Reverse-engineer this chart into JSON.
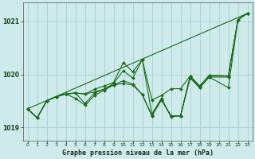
{
  "xlabel": "Graphe pression niveau de la mer (hPa)",
  "background_color": "#ceeaea",
  "grid_color": "#aad4d4",
  "line_color": "#1a6b1a",
  "x_ticks": [
    0,
    1,
    2,
    3,
    4,
    5,
    6,
    7,
    8,
    9,
    10,
    11,
    12,
    13,
    14,
    15,
    16,
    17,
    18,
    19,
    20,
    21,
    22,
    23
  ],
  "ylim": [
    1018.75,
    1021.35
  ],
  "yticks": [
    1019,
    1020,
    1021
  ],
  "series_with_markers": [
    {
      "x": [
        0,
        1,
        2,
        3,
        4,
        5,
        6,
        7,
        8,
        9,
        10,
        11,
        12,
        13,
        14,
        15,
        16,
        17,
        18,
        19,
        21,
        22,
        23
      ],
      "y": [
        1019.35,
        1019.18,
        1019.5,
        1019.58,
        1019.63,
        1019.65,
        1019.63,
        1019.72,
        1019.78,
        1019.85,
        1020.22,
        1020.05,
        1020.28,
        1019.52,
        1019.6,
        1019.73,
        1019.73,
        1019.97,
        1019.78,
        1019.98,
        1019.97,
        1021.03,
        1021.15
      ]
    },
    {
      "x": [
        0,
        1,
        2,
        3,
        4,
        5,
        6,
        7,
        8,
        9,
        10,
        11,
        12,
        13,
        14,
        15,
        16,
        17,
        18,
        19,
        21,
        22,
        23
      ],
      "y": [
        1019.35,
        1019.18,
        1019.5,
        1019.58,
        1019.63,
        1019.65,
        1019.45,
        1019.65,
        1019.72,
        1019.83,
        1020.07,
        1019.93,
        1020.28,
        1019.25,
        1019.55,
        1019.2,
        1019.22,
        1019.97,
        1019.78,
        1019.98,
        1019.97,
        1021.03,
        1021.15
      ]
    },
    {
      "x": [
        0,
        1,
        2,
        3,
        4,
        5,
        6,
        7,
        8,
        9,
        10,
        11,
        12,
        13,
        14,
        15,
        16,
        17,
        18,
        19,
        21,
        22,
        23
      ],
      "y": [
        1019.35,
        1019.18,
        1019.5,
        1019.58,
        1019.63,
        1019.55,
        1019.42,
        1019.6,
        1019.7,
        1019.8,
        1019.88,
        1019.82,
        1019.62,
        1019.22,
        1019.52,
        1019.22,
        1019.22,
        1019.95,
        1019.75,
        1019.95,
        1019.75,
        1021.03,
        1021.15
      ]
    },
    {
      "x": [
        0,
        1,
        2,
        3,
        4,
        5,
        6,
        7,
        8,
        9,
        10,
        11,
        12,
        13,
        14,
        15,
        16,
        17,
        18,
        19,
        21,
        22,
        23
      ],
      "y": [
        1019.35,
        1019.18,
        1019.5,
        1019.58,
        1019.63,
        1019.65,
        1019.63,
        1019.67,
        1019.72,
        1019.8,
        1019.83,
        1019.8,
        1019.62,
        1019.22,
        1019.52,
        1019.22,
        1019.22,
        1019.93,
        1019.75,
        1019.95,
        1019.95,
        1021.03,
        1021.15
      ]
    }
  ],
  "diagonal_line": {
    "x": [
      0,
      23
    ],
    "y": [
      1019.35,
      1021.15
    ]
  }
}
